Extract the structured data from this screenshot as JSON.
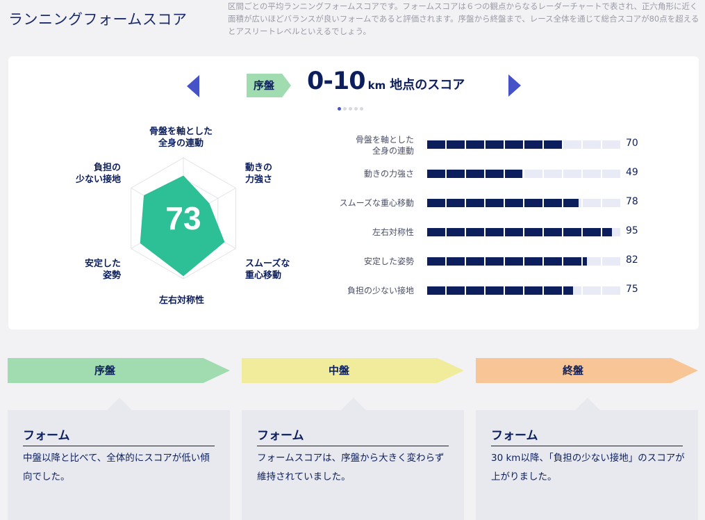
{
  "header": {
    "title": "ランニングフォームスコア",
    "description": "区間ごとの平均ランニングフォームスコアです。フォームスコアは６つの観点からなるレーダーチャートで表され、正六角形に近く面積が広いほどバランスが良いフォームであると評価されます。序盤から終盤まで、レース全体を通じて総合スコアが80点を超えるとアスリートレベルといえるでしょう。"
  },
  "score_card": {
    "phase_tag": "序盤",
    "range": "0-10",
    "unit": "km",
    "heading_suffix": "地点のスコア",
    "total_score": "73",
    "carousel_dots": 5,
    "active_dot": 0
  },
  "chart_data": {
    "type": "radar",
    "categories": [
      "骨盤を軸とした全身の連動",
      "動きの力強さ",
      "スムーズな重心移動",
      "左右対称性",
      "安定した姿勢",
      "負担の少ない接地"
    ],
    "radar_labels": [
      "骨盤を軸とした\n全身の連動",
      "動きの\n力強さ",
      "スムーズな\n重心移動",
      "左右対称性",
      "安定した\n姿勢",
      "負担の\n少ない接地"
    ],
    "bar_labels": [
      "骨盤を軸とした\n全身の連動",
      "動きの力強さ",
      "スムーズな重心移動",
      "左右対称性",
      "安定した姿勢",
      "負担の少ない接地"
    ],
    "values": [
      70,
      49,
      78,
      95,
      82,
      75
    ],
    "max": 100
  },
  "colors": {
    "accent": "#4653c8",
    "navy": "#0c1f5c",
    "radar_fill": "#2dbf96",
    "early": "#a1dcb0",
    "middle": "#f1ec9c",
    "late": "#f8c596"
  },
  "phases": [
    {
      "label": "序盤",
      "box_title": "フォーム",
      "box_text": "中盤以降と比べて、全体的にスコアが低い傾向でした。"
    },
    {
      "label": "中盤",
      "box_title": "フォーム",
      "box_text": "フォームスコアは、序盤から大きく変わらず維持されていました。"
    },
    {
      "label": "終盤",
      "box_title": "フォーム",
      "box_text": "30 km以降、「負担の少ない接地」のスコアが上がりました。"
    }
  ]
}
